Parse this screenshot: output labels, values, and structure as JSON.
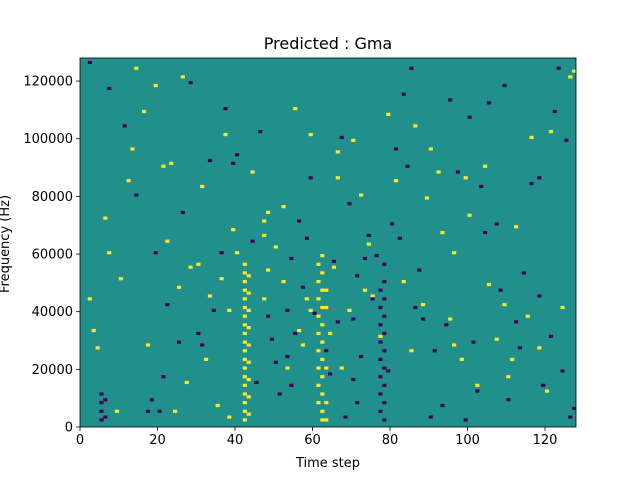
{
  "chart_data": {
    "type": "heatmap",
    "title": "Predicted : Gma",
    "xlabel": "Time step",
    "ylabel": "Frequency (Hz)",
    "xlim": [
      0,
      128
    ],
    "ylim": [
      0,
      128000
    ],
    "xticks": [
      0,
      20,
      40,
      60,
      80,
      100,
      120
    ],
    "yticks": [
      0,
      20000,
      40000,
      60000,
      80000,
      100000,
      120000
    ],
    "grid": false,
    "n_time_steps": 128,
    "n_freq_bins": 128,
    "colors": {
      "background": "#21908d",
      "low": "#440154",
      "high": "#fde725"
    },
    "background_level": 0.5,
    "low_level": 0,
    "high_level": 1,
    "cells": [
      [
        42,
        2,
        "h"
      ],
      [
        42,
        5,
        "h"
      ],
      [
        42,
        8,
        "h"
      ],
      [
        42,
        11,
        "h"
      ],
      [
        42,
        14,
        "h"
      ],
      [
        42,
        17,
        "h"
      ],
      [
        42,
        20,
        "h"
      ],
      [
        42,
        23,
        "h"
      ],
      [
        42,
        26,
        "h"
      ],
      [
        42,
        29,
        "h"
      ],
      [
        42,
        32,
        "h"
      ],
      [
        42,
        35,
        "h"
      ],
      [
        42,
        38,
        "h"
      ],
      [
        42,
        41,
        "h"
      ],
      [
        42,
        44,
        "h"
      ],
      [
        42,
        47,
        "h"
      ],
      [
        42,
        50,
        "h"
      ],
      [
        42,
        53,
        "h"
      ],
      [
        42,
        56,
        "h"
      ],
      [
        43,
        4,
        "h"
      ],
      [
        43,
        10,
        "h"
      ],
      [
        43,
        16,
        "h"
      ],
      [
        43,
        22,
        "h"
      ],
      [
        43,
        28,
        "h"
      ],
      [
        43,
        34,
        "h"
      ],
      [
        43,
        40,
        "h"
      ],
      [
        43,
        46,
        "h"
      ],
      [
        43,
        52,
        "h"
      ],
      [
        61,
        8,
        "h"
      ],
      [
        61,
        14,
        "h"
      ],
      [
        61,
        20,
        "h"
      ],
      [
        61,
        26,
        "h"
      ],
      [
        61,
        32,
        "h"
      ],
      [
        61,
        38,
        "h"
      ],
      [
        61,
        44,
        "h"
      ],
      [
        61,
        50,
        "h"
      ],
      [
        61,
        56,
        "h"
      ],
      [
        62,
        2,
        "h"
      ],
      [
        62,
        5,
        "h"
      ],
      [
        62,
        11,
        "h"
      ],
      [
        62,
        17,
        "h"
      ],
      [
        62,
        23,
        "h"
      ],
      [
        62,
        29,
        "h"
      ],
      [
        62,
        35,
        "h"
      ],
      [
        62,
        41,
        "h"
      ],
      [
        62,
        47,
        "h"
      ],
      [
        62,
        53,
        "h"
      ],
      [
        62,
        59,
        "h"
      ],
      [
        63,
        2,
        "h"
      ],
      [
        63,
        8,
        "h"
      ],
      [
        63,
        20,
        "h"
      ],
      [
        63,
        41,
        "h"
      ],
      [
        63,
        47,
        "h"
      ],
      [
        47,
        44,
        "h"
      ],
      [
        47,
        66,
        "h"
      ],
      [
        47,
        71,
        "h"
      ],
      [
        48,
        74,
        "h"
      ],
      [
        48,
        54,
        "h"
      ],
      [
        38,
        3,
        "h"
      ],
      [
        38,
        40,
        "h"
      ],
      [
        40,
        60,
        "h"
      ],
      [
        52,
        50,
        "h"
      ],
      [
        52,
        76,
        "h"
      ],
      [
        57,
        28,
        "h"
      ],
      [
        58,
        44,
        "h"
      ],
      [
        59,
        40,
        "h"
      ],
      [
        59,
        101,
        "h"
      ],
      [
        64,
        32,
        "h"
      ],
      [
        66,
        86,
        "h"
      ],
      [
        66,
        95,
        "h"
      ],
      [
        69,
        40,
        "h"
      ],
      [
        70,
        99,
        "h"
      ],
      [
        72,
        80,
        "h"
      ],
      [
        73,
        47,
        "h"
      ],
      [
        74,
        63,
        "h"
      ],
      [
        75,
        45,
        "h"
      ],
      [
        81,
        85,
        "h"
      ],
      [
        85,
        26,
        "h"
      ],
      [
        88,
        42,
        "h"
      ],
      [
        90,
        96,
        "h"
      ],
      [
        92,
        88,
        "h"
      ],
      [
        93,
        67,
        "h"
      ],
      [
        96,
        60,
        "h"
      ],
      [
        96,
        28,
        "h"
      ],
      [
        98,
        23,
        "h"
      ],
      [
        100,
        73,
        "h"
      ],
      [
        102,
        14,
        "h"
      ],
      [
        104,
        90,
        "h"
      ],
      [
        107,
        30,
        "h"
      ],
      [
        109,
        42,
        "h"
      ],
      [
        110,
        17,
        "h"
      ],
      [
        112,
        69,
        "h"
      ],
      [
        115,
        38,
        "h"
      ],
      [
        116,
        100,
        "h"
      ],
      [
        118,
        27,
        "h"
      ],
      [
        120,
        12,
        "h"
      ],
      [
        121,
        102,
        "h"
      ],
      [
        124,
        41,
        "h"
      ],
      [
        126,
        121,
        "h"
      ],
      [
        127,
        123,
        "h"
      ],
      [
        14,
        124,
        "h"
      ],
      [
        26,
        121,
        "h"
      ],
      [
        23,
        91,
        "h"
      ],
      [
        30,
        56,
        "h"
      ],
      [
        2,
        44,
        "h"
      ],
      [
        3,
        33,
        "h"
      ],
      [
        4,
        27,
        "h"
      ],
      [
        6,
        72,
        "h"
      ],
      [
        7,
        60,
        "h"
      ],
      [
        9,
        5,
        "h"
      ],
      [
        10,
        51,
        "h"
      ],
      [
        12,
        85,
        "h"
      ],
      [
        13,
        96,
        "h"
      ],
      [
        16,
        109,
        "h"
      ],
      [
        17,
        28,
        "h"
      ],
      [
        19,
        118,
        "h"
      ],
      [
        21,
        90,
        "h"
      ],
      [
        22,
        64,
        "h"
      ],
      [
        24,
        5,
        "h"
      ],
      [
        25,
        48,
        "h"
      ],
      [
        27,
        15,
        "h"
      ],
      [
        28,
        55,
        "h"
      ],
      [
        31,
        83,
        "h"
      ],
      [
        32,
        23,
        "h"
      ],
      [
        33,
        45,
        "h"
      ],
      [
        35,
        7,
        "h"
      ],
      [
        36,
        51,
        "h"
      ],
      [
        37,
        101,
        "h"
      ],
      [
        39,
        68,
        "h"
      ],
      [
        44,
        88,
        "h"
      ],
      [
        50,
        62,
        "h"
      ],
      [
        53,
        20,
        "h"
      ],
      [
        55,
        110,
        "h"
      ],
      [
        56,
        33,
        "h"
      ],
      [
        65,
        55,
        "h"
      ],
      [
        67,
        20,
        "h"
      ],
      [
        77,
        31,
        "h"
      ],
      [
        79,
        108,
        "h"
      ],
      [
        83,
        50,
        "h"
      ],
      [
        86,
        104,
        "h"
      ],
      [
        89,
        79,
        "h"
      ],
      [
        95,
        37,
        "h"
      ],
      [
        99,
        86,
        "h"
      ],
      [
        105,
        49,
        "h"
      ],
      [
        111,
        23,
        "h"
      ],
      [
        5,
        2,
        "l"
      ],
      [
        5,
        5,
        "l"
      ],
      [
        5,
        8,
        "l"
      ],
      [
        5,
        11,
        "l"
      ],
      [
        6,
        3,
        "l"
      ],
      [
        6,
        9,
        "l"
      ],
      [
        77,
        5,
        "l"
      ],
      [
        77,
        11,
        "l"
      ],
      [
        77,
        17,
        "l"
      ],
      [
        77,
        23,
        "l"
      ],
      [
        77,
        29,
        "l"
      ],
      [
        77,
        35,
        "l"
      ],
      [
        77,
        41,
        "l"
      ],
      [
        77,
        47,
        "l"
      ],
      [
        78,
        2,
        "l"
      ],
      [
        78,
        8,
        "l"
      ],
      [
        78,
        14,
        "l"
      ],
      [
        78,
        20,
        "l"
      ],
      [
        78,
        26,
        "l"
      ],
      [
        78,
        32,
        "l"
      ],
      [
        78,
        38,
        "l"
      ],
      [
        78,
        44,
        "l"
      ],
      [
        78,
        50,
        "l"
      ],
      [
        78,
        56,
        "l"
      ],
      [
        53,
        24,
        "l"
      ],
      [
        53,
        40,
        "l"
      ],
      [
        54,
        58,
        "l"
      ],
      [
        54,
        14,
        "l"
      ],
      [
        55,
        32,
        "l"
      ],
      [
        70,
        16,
        "l"
      ],
      [
        70,
        37,
        "l"
      ],
      [
        71,
        52,
        "l"
      ],
      [
        71,
        8,
        "l"
      ],
      [
        72,
        24,
        "l"
      ],
      [
        74,
        66,
        "l"
      ],
      [
        75,
        44,
        "l"
      ],
      [
        76,
        59,
        "l"
      ],
      [
        79,
        19,
        "l"
      ],
      [
        80,
        70,
        "l"
      ],
      [
        17,
        5,
        "l"
      ],
      [
        18,
        9,
        "l"
      ],
      [
        20,
        5,
        "l"
      ],
      [
        21,
        17,
        "l"
      ],
      [
        25,
        29,
        "l"
      ],
      [
        30,
        32,
        "l"
      ],
      [
        31,
        28,
        "l"
      ],
      [
        34,
        40,
        "l"
      ],
      [
        36,
        60,
        "l"
      ],
      [
        39,
        91,
        "l"
      ],
      [
        45,
        15,
        "l"
      ],
      [
        48,
        38,
        "l"
      ],
      [
        50,
        22,
        "l"
      ],
      [
        51,
        11,
        "l"
      ],
      [
        57,
        48,
        "l"
      ],
      [
        58,
        65,
        "l"
      ],
      [
        60,
        39,
        "l"
      ],
      [
        63,
        26,
        "l"
      ],
      [
        65,
        57,
        "l"
      ],
      [
        66,
        36,
        "l"
      ],
      [
        68,
        3,
        "l"
      ],
      [
        69,
        77,
        "l"
      ],
      [
        73,
        58,
        "l"
      ],
      [
        82,
        65,
        "l"
      ],
      [
        84,
        90,
        "l"
      ],
      [
        86,
        41,
        "l"
      ],
      [
        87,
        54,
        "l"
      ],
      [
        90,
        3,
        "l"
      ],
      [
        91,
        26,
        "l"
      ],
      [
        93,
        7,
        "l"
      ],
      [
        94,
        35,
        "l"
      ],
      [
        97,
        88,
        "l"
      ],
      [
        99,
        2,
        "l"
      ],
      [
        101,
        29,
        "l"
      ],
      [
        103,
        83,
        "l"
      ],
      [
        105,
        112,
        "l"
      ],
      [
        107,
        70,
        "l"
      ],
      [
        109,
        118,
        "l"
      ],
      [
        112,
        36,
        "l"
      ],
      [
        114,
        53,
        "l"
      ],
      [
        116,
        84,
        "l"
      ],
      [
        119,
        14,
        "l"
      ],
      [
        122,
        109,
        "l"
      ],
      [
        123,
        124,
        "l"
      ],
      [
        125,
        99,
        "l"
      ],
      [
        126,
        3,
        "l"
      ],
      [
        127,
        6,
        "l"
      ],
      [
        2,
        126,
        "l"
      ],
      [
        7,
        117,
        "l"
      ],
      [
        11,
        104,
        "l"
      ],
      [
        14,
        80,
        "l"
      ],
      [
        19,
        60,
        "l"
      ],
      [
        22,
        42,
        "l"
      ],
      [
        26,
        74,
        "l"
      ],
      [
        28,
        119,
        "l"
      ],
      [
        33,
        92,
        "l"
      ],
      [
        37,
        110,
        "l"
      ],
      [
        40,
        94,
        "l"
      ],
      [
        44,
        64,
        "l"
      ],
      [
        46,
        102,
        "l"
      ],
      [
        49,
        30,
        "l"
      ],
      [
        56,
        71,
        "l"
      ],
      [
        59,
        86,
        "l"
      ],
      [
        64,
        18,
        "l"
      ],
      [
        67,
        100,
        "l"
      ],
      [
        81,
        96,
        "l"
      ],
      [
        83,
        115,
        "l"
      ],
      [
        88,
        37,
        "l"
      ],
      [
        95,
        113,
        "l"
      ],
      [
        100,
        107,
        "l"
      ],
      [
        104,
        67,
        "l"
      ],
      [
        108,
        47,
        "l"
      ],
      [
        110,
        9,
        "l"
      ],
      [
        113,
        27,
        "l"
      ],
      [
        118,
        45,
        "l"
      ],
      [
        121,
        31,
        "l"
      ],
      [
        124,
        19,
        "l"
      ],
      [
        118,
        86,
        "l"
      ],
      [
        102,
        12,
        "l"
      ],
      [
        85,
        124,
        "l"
      ]
    ]
  }
}
